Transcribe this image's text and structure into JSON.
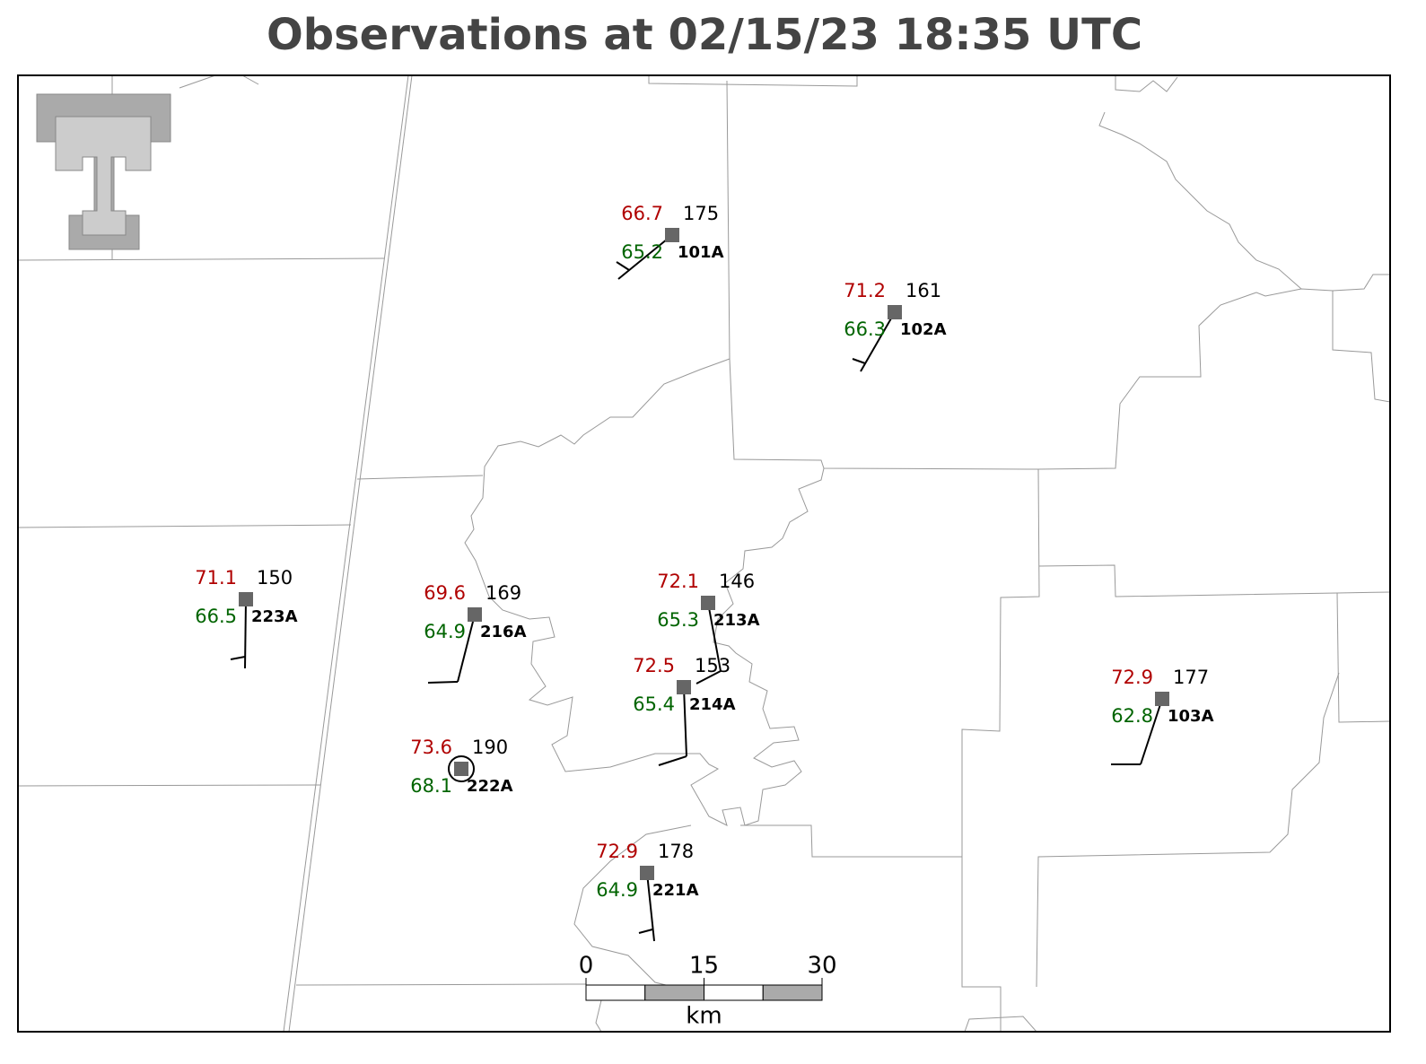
{
  "title": "Observations at 02/15/23 18:35 UTC",
  "stations": [
    {
      "id": "101A",
      "temperature": 66.7,
      "dewpoint": 65.2,
      "value": 175
    },
    {
      "id": "102A",
      "temperature": 71.2,
      "dewpoint": 66.3,
      "value": 161
    },
    {
      "id": "223A",
      "temperature": 71.1,
      "dewpoint": 66.5,
      "value": 150
    },
    {
      "id": "216A",
      "temperature": 69.6,
      "dewpoint": 64.9,
      "value": 169
    },
    {
      "id": "213A",
      "temperature": 72.1,
      "dewpoint": 65.3,
      "value": 146
    },
    {
      "id": "214A",
      "temperature": 72.5,
      "dewpoint": 65.4,
      "value": 153
    },
    {
      "id": "222A",
      "temperature": 73.6,
      "dewpoint": 68.1,
      "value": 190
    },
    {
      "id": "221A",
      "temperature": 72.9,
      "dewpoint": 64.9,
      "value": 178
    },
    {
      "id": "103A",
      "temperature": 72.9,
      "dewpoint": 62.8,
      "value": 177
    }
  ],
  "scale_bar": {
    "ticks": [
      0,
      15,
      30
    ],
    "unit": "km"
  }
}
